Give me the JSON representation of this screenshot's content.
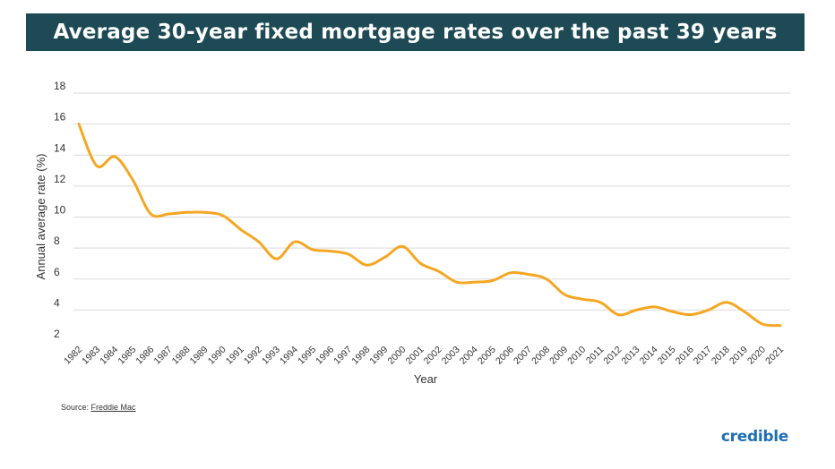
{
  "header": {
    "title": "Average 30-year fixed mortgage rates over the past 39 years"
  },
  "chart_data": {
    "type": "line",
    "title": "Average 30-year fixed mortgage rates over the past 39 years",
    "xlabel": "Year",
    "ylabel": "Annual average rate (%)",
    "ylim": [
      2,
      18
    ],
    "yticks": [
      2,
      4,
      6,
      8,
      10,
      12,
      14,
      16,
      18
    ],
    "grid": true,
    "line_color": "#f5a623",
    "categories": [
      "1982",
      "1983",
      "1984",
      "1985",
      "1986",
      "1987",
      "1988",
      "1989",
      "1990",
      "1991",
      "1992",
      "1993",
      "1994",
      "1995",
      "1996",
      "1997",
      "1998",
      "1999",
      "2000",
      "2001",
      "2002",
      "2003",
      "2004",
      "2005",
      "2006",
      "2007",
      "2008",
      "2009",
      "2010",
      "2011",
      "2012",
      "2013",
      "2014",
      "2015",
      "2016",
      "2017",
      "2018",
      "2019",
      "2020",
      "2021"
    ],
    "values": [
      16.0,
      13.3,
      13.9,
      12.4,
      10.2,
      10.2,
      10.3,
      10.3,
      10.1,
      9.2,
      8.4,
      7.3,
      8.4,
      7.9,
      7.8,
      7.6,
      6.9,
      7.4,
      8.1,
      7.0,
      6.5,
      5.8,
      5.8,
      5.9,
      6.4,
      6.3,
      6.0,
      5.0,
      4.7,
      4.5,
      3.7,
      4.0,
      4.2,
      3.9,
      3.7,
      4.0,
      4.5,
      3.9,
      3.1,
      3.0
    ]
  },
  "footer": {
    "source_prefix": "Source: ",
    "source_name": "Freddie Mac",
    "brand": "credible"
  }
}
